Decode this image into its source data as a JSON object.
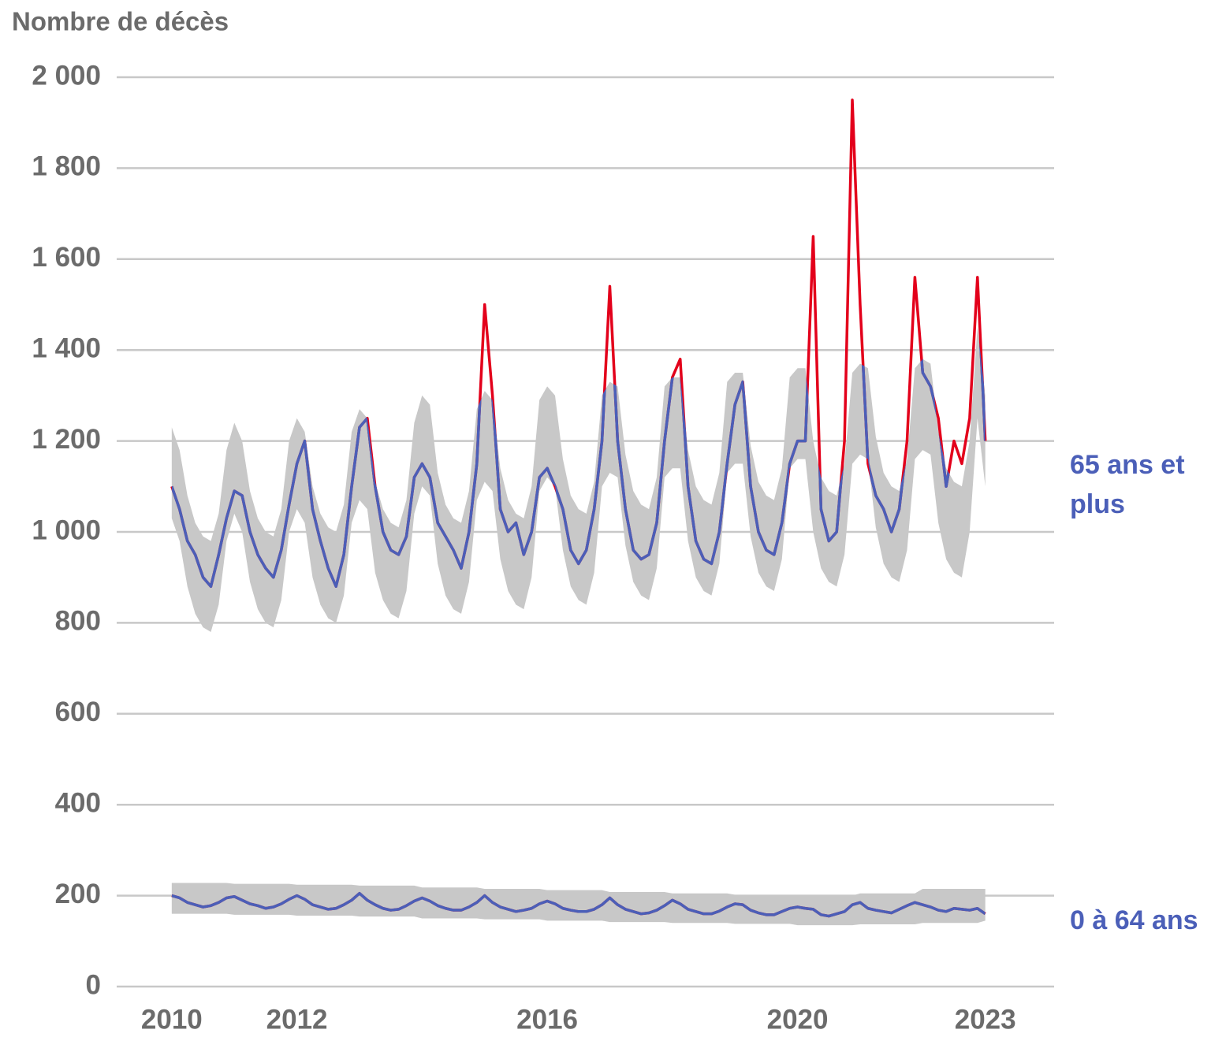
{
  "chart_data": {
    "type": "line",
    "y_label": "Nombre de décès",
    "x": [
      2010,
      2010.125,
      2010.25,
      2010.375,
      2010.5,
      2010.625,
      2010.75,
      2010.875,
      2011,
      2011.125,
      2011.25,
      2011.375,
      2011.5,
      2011.625,
      2011.75,
      2011.875,
      2012,
      2012.125,
      2012.25,
      2012.375,
      2012.5,
      2012.625,
      2012.75,
      2012.875,
      2013,
      2013.125,
      2013.25,
      2013.375,
      2013.5,
      2013.625,
      2013.75,
      2013.875,
      2014,
      2014.125,
      2014.25,
      2014.375,
      2014.5,
      2014.625,
      2014.75,
      2014.875,
      2015,
      2015.125,
      2015.25,
      2015.375,
      2015.5,
      2015.625,
      2015.75,
      2015.875,
      2016,
      2016.125,
      2016.25,
      2016.375,
      2016.5,
      2016.625,
      2016.75,
      2016.875,
      2017,
      2017.125,
      2017.25,
      2017.375,
      2017.5,
      2017.625,
      2017.75,
      2017.875,
      2018,
      2018.125,
      2018.25,
      2018.375,
      2018.5,
      2018.625,
      2018.75,
      2018.875,
      2019,
      2019.125,
      2019.25,
      2019.375,
      2019.5,
      2019.625,
      2019.75,
      2019.875,
      2020,
      2020.125,
      2020.25,
      2020.375,
      2020.5,
      2020.625,
      2020.75,
      2020.875,
      2021,
      2021.125,
      2021.25,
      2021.375,
      2021.5,
      2021.625,
      2021.75,
      2021.875,
      2022,
      2022.125,
      2022.25,
      2022.375,
      2022.5,
      2022.625,
      2022.75,
      2022.875,
      2023
    ],
    "series": [
      {
        "name": "65 ans et plus",
        "color": "#4b5fb8",
        "excess_color": "#e3001b",
        "band_color": "#c8c8c8",
        "values": [
          1100,
          1050,
          980,
          950,
          900,
          880,
          950,
          1030,
          1090,
          1080,
          1000,
          950,
          920,
          900,
          960,
          1060,
          1150,
          1200,
          1050,
          980,
          920,
          880,
          950,
          1100,
          1230,
          1250,
          1100,
          1000,
          960,
          950,
          990,
          1120,
          1150,
          1120,
          1020,
          990,
          960,
          920,
          1000,
          1150,
          1500,
          1300,
          1050,
          1000,
          1020,
          950,
          1000,
          1120,
          1140,
          1100,
          1050,
          960,
          930,
          960,
          1050,
          1200,
          1540,
          1200,
          1050,
          960,
          940,
          950,
          1020,
          1200,
          1340,
          1380,
          1100,
          980,
          940,
          930,
          1000,
          1150,
          1280,
          1330,
          1100,
          1000,
          960,
          950,
          1020,
          1150,
          1200,
          1200,
          1650,
          1050,
          980,
          1000,
          1200,
          1950,
          1500,
          1150,
          1080,
          1050,
          1000,
          1050,
          1200,
          1560,
          1350,
          1320,
          1250,
          1100,
          1200,
          1150,
          1250,
          1560,
          1200
        ],
        "band_upper": [
          1230,
          1180,
          1080,
          1020,
          990,
          980,
          1040,
          1180,
          1240,
          1200,
          1090,
          1030,
          1000,
          990,
          1050,
          1200,
          1250,
          1220,
          1100,
          1040,
          1010,
          1000,
          1060,
          1220,
          1270,
          1250,
          1110,
          1050,
          1020,
          1010,
          1070,
          1240,
          1300,
          1280,
          1130,
          1060,
          1030,
          1020,
          1090,
          1270,
          1310,
          1290,
          1140,
          1070,
          1040,
          1030,
          1100,
          1290,
          1320,
          1300,
          1160,
          1080,
          1050,
          1040,
          1110,
          1300,
          1330,
          1320,
          1170,
          1090,
          1060,
          1050,
          1120,
          1320,
          1340,
          1340,
          1180,
          1100,
          1070,
          1060,
          1130,
          1330,
          1350,
          1350,
          1190,
          1110,
          1080,
          1070,
          1140,
          1340,
          1360,
          1360,
          1200,
          1120,
          1090,
          1080,
          1150,
          1350,
          1370,
          1360,
          1210,
          1130,
          1100,
          1090,
          1160,
          1360,
          1380,
          1370,
          1220,
          1140,
          1110,
          1100,
          1200,
          1450,
          1300
        ],
        "band_lower": [
          1030,
          980,
          880,
          820,
          790,
          780,
          840,
          980,
          1040,
          1000,
          890,
          830,
          800,
          790,
          850,
          1000,
          1050,
          1020,
          900,
          840,
          810,
          800,
          860,
          1020,
          1070,
          1050,
          910,
          850,
          820,
          810,
          870,
          1040,
          1100,
          1080,
          930,
          860,
          830,
          820,
          890,
          1070,
          1110,
          1090,
          940,
          870,
          840,
          830,
          900,
          1090,
          1120,
          1100,
          960,
          880,
          850,
          840,
          910,
          1100,
          1130,
          1120,
          970,
          890,
          860,
          850,
          920,
          1120,
          1140,
          1140,
          980,
          900,
          870,
          860,
          930,
          1130,
          1150,
          1150,
          990,
          910,
          880,
          870,
          940,
          1140,
          1160,
          1160,
          1000,
          920,
          890,
          880,
          950,
          1150,
          1170,
          1160,
          1010,
          930,
          900,
          890,
          960,
          1160,
          1180,
          1170,
          1020,
          940,
          910,
          900,
          1000,
          1250,
          1100
        ]
      },
      {
        "name": "0 à 64 ans",
        "color": "#4b5fb8",
        "excess_color": "#e3001b",
        "band_color": "#c8c8c8",
        "values": [
          200,
          195,
          185,
          180,
          175,
          178,
          185,
          195,
          198,
          190,
          182,
          178,
          172,
          175,
          182,
          192,
          200,
          192,
          180,
          175,
          170,
          172,
          180,
          190,
          205,
          190,
          180,
          172,
          168,
          170,
          178,
          188,
          195,
          188,
          178,
          172,
          168,
          168,
          175,
          185,
          200,
          185,
          175,
          170,
          165,
          168,
          172,
          182,
          188,
          182,
          172,
          168,
          165,
          165,
          170,
          180,
          195,
          180,
          170,
          165,
          160,
          162,
          168,
          178,
          190,
          182,
          170,
          165,
          160,
          160,
          166,
          175,
          182,
          180,
          168,
          162,
          158,
          158,
          165,
          172,
          175,
          172,
          170,
          158,
          155,
          160,
          165,
          180,
          185,
          172,
          168,
          165,
          162,
          170,
          178,
          185,
          180,
          175,
          168,
          165,
          172,
          170,
          168,
          172,
          160
        ],
        "band_upper": [
          228,
          228,
          228,
          228,
          228,
          228,
          228,
          228,
          226,
          226,
          226,
          226,
          226,
          226,
          226,
          226,
          224,
          224,
          224,
          224,
          224,
          224,
          224,
          224,
          222,
          222,
          222,
          222,
          222,
          222,
          222,
          222,
          218,
          218,
          218,
          218,
          218,
          218,
          218,
          218,
          215,
          215,
          215,
          215,
          215,
          215,
          215,
          215,
          212,
          212,
          212,
          212,
          212,
          212,
          212,
          212,
          208,
          208,
          208,
          208,
          208,
          208,
          208,
          208,
          205,
          205,
          205,
          205,
          205,
          205,
          205,
          205,
          202,
          202,
          202,
          202,
          202,
          202,
          202,
          202,
          200,
          200,
          200,
          200,
          200,
          200,
          200,
          200,
          205,
          205,
          205,
          205,
          205,
          205,
          205,
          205,
          215,
          215,
          215,
          215,
          215,
          215,
          215,
          215,
          215
        ],
        "band_lower": [
          160,
          160,
          160,
          160,
          160,
          160,
          160,
          160,
          158,
          158,
          158,
          158,
          158,
          158,
          158,
          158,
          156,
          156,
          156,
          156,
          156,
          156,
          156,
          156,
          154,
          154,
          154,
          154,
          154,
          154,
          154,
          154,
          150,
          150,
          150,
          150,
          150,
          150,
          150,
          150,
          148,
          148,
          148,
          148,
          148,
          148,
          148,
          148,
          145,
          145,
          145,
          145,
          145,
          145,
          145,
          145,
          142,
          142,
          142,
          142,
          142,
          142,
          142,
          142,
          140,
          140,
          140,
          140,
          140,
          140,
          140,
          140,
          138,
          138,
          138,
          138,
          138,
          138,
          138,
          138,
          135,
          135,
          135,
          135,
          135,
          135,
          135,
          135,
          137,
          137,
          137,
          137,
          137,
          137,
          137,
          137,
          140,
          140,
          140,
          140,
          140,
          140,
          140,
          140,
          145
        ]
      }
    ],
    "xlim": [
      2009.12,
      2024.1
    ],
    "xticks": [
      2010,
      2012,
      2016,
      2020,
      2023
    ],
    "ylim": [
      0,
      2000
    ],
    "yticks": [
      0,
      200,
      400,
      600,
      800,
      {
        "value": 1000,
        "label": "1 000"
      },
      {
        "value": 1200,
        "label": "1 200"
      },
      {
        "value": 1400,
        "label": "1 400"
      },
      {
        "value": 1600,
        "label": "1 600"
      },
      {
        "value": 1800,
        "label": "1 800"
      },
      {
        "value": 2000,
        "label": "2 000"
      }
    ],
    "grid": true
  }
}
